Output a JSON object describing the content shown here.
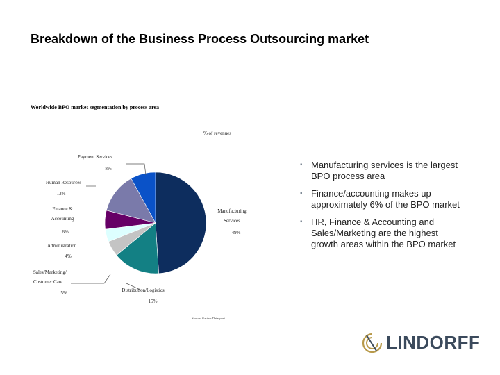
{
  "slide": {
    "title": "Breakdown of the Business Process Outsourcing market",
    "subtitle": "Worldwide BPO market segmentation by process area",
    "bullets": [
      "Manufacturing services is the largest BPO process area",
      "Finance/accounting makes up approximately 6% of the BPO market",
      "HR, Finance & Accounting and Sales/Marketing are the highest growth areas within the BPO market"
    ],
    "bullet_icon": "square-bullet",
    "logo_text": "LINDORFF"
  },
  "chart_data": {
    "type": "pie",
    "title": "% of revenues",
    "source": "Source: Gartner Dataquest",
    "slices": [
      {
        "label": "Manufacturing Services",
        "label_lines": [
          "Manufacturing",
          "Services"
        ],
        "value": 49,
        "value_label": "49%",
        "color": "#0d2d5e"
      },
      {
        "label": "Distribution/Logistics",
        "label_lines": [
          "Distribution/Logistics"
        ],
        "value": 15,
        "value_label": "15%",
        "color": "#138084"
      },
      {
        "label": "Sales/Marketing/Customer Care",
        "label_lines": [
          "Sales/Marketing/",
          "Customer Care"
        ],
        "value": 5,
        "value_label": "5%",
        "color": "#c4c4c4"
      },
      {
        "label": "Administration",
        "label_lines": [
          "Administration"
        ],
        "value": 4,
        "value_label": "4%",
        "color": "#ddffff"
      },
      {
        "label": "Finance & Accounting",
        "label_lines": [
          "Finance &",
          "Accounting"
        ],
        "value": 6,
        "value_label": "6%",
        "color": "#660066"
      },
      {
        "label": "Human Resources",
        "label_lines": [
          "Human Resources"
        ],
        "value": 13,
        "value_label": "13%",
        "color": "#7a7aaa"
      },
      {
        "label": "Payment Services",
        "label_lines": [
          "Payment Services"
        ],
        "value": 8,
        "value_label": "8%",
        "color": "#0a52c8"
      }
    ]
  }
}
